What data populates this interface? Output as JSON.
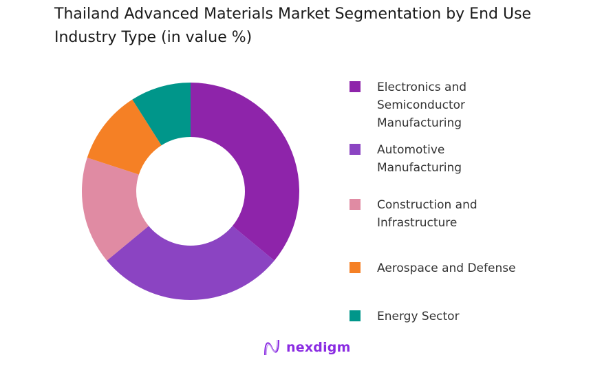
{
  "chart_data": {
    "type": "pie",
    "donut": true,
    "title": "Thailand Advanced Materials Market Segmentation by End Use Industry Type (in value %)",
    "categories": [
      "Electronics and Semiconductor Manufacturing",
      "Automotive Manufacturing",
      "Construction and Infrastructure",
      "Aerospace and Defense",
      "Energy Sector"
    ],
    "values": [
      36,
      28,
      16,
      11,
      9
    ],
    "colors": [
      "#8E24AA",
      "#8B44C2",
      "#E08BA3",
      "#F58025",
      "#00968A"
    ],
    "legend_position": "right"
  },
  "brand": {
    "name": "nexdigm"
  }
}
